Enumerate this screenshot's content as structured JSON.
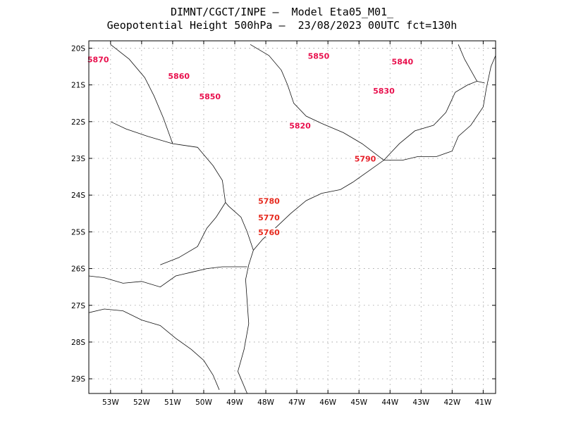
{
  "header": {
    "line1": "DIMNT/CGCT/INPE –  Model Eta05_M01_",
    "line2": "Geopotential Height 500hPa –  23/08/2023 00UTC fct=130h"
  },
  "map": {
    "lon_range": [
      -53.7,
      -40.6
    ],
    "lat_range": [
      -29.4,
      -19.8
    ],
    "lon_ticks": [
      {
        "value": -53,
        "label": "53W"
      },
      {
        "value": -52,
        "label": "52W"
      },
      {
        "value": -51,
        "label": "51W"
      },
      {
        "value": -50,
        "label": "50W"
      },
      {
        "value": -49,
        "label": "49W"
      },
      {
        "value": -48,
        "label": "48W"
      },
      {
        "value": -47,
        "label": "47W"
      },
      {
        "value": -46,
        "label": "46W"
      },
      {
        "value": -45,
        "label": "45W"
      },
      {
        "value": -44,
        "label": "44W"
      },
      {
        "value": -43,
        "label": "43W"
      },
      {
        "value": -42,
        "label": "42W"
      },
      {
        "value": -41,
        "label": "41W"
      }
    ],
    "lat_ticks": [
      {
        "value": -20,
        "label": "20S"
      },
      {
        "value": -21,
        "label": "21S"
      },
      {
        "value": -22,
        "label": "22S"
      },
      {
        "value": -23,
        "label": "23S"
      },
      {
        "value": -24,
        "label": "24S"
      },
      {
        "value": -25,
        "label": "25S"
      },
      {
        "value": -26,
        "label": "26S"
      },
      {
        "value": -27,
        "label": "27S"
      },
      {
        "value": -28,
        "label": "28S"
      },
      {
        "value": -29,
        "label": "29S"
      }
    ],
    "contour_labels": [
      {
        "text": "5870",
        "lon": -53.4,
        "lat": -20.35,
        "color": "#e8104d"
      },
      {
        "text": "5860",
        "lon": -50.8,
        "lat": -20.8,
        "color": "#e8104d"
      },
      {
        "text": "5850",
        "lon": -46.3,
        "lat": -20.25,
        "color": "#e8104d"
      },
      {
        "text": "5850",
        "lon": -49.8,
        "lat": -21.35,
        "color": "#e8104d"
      },
      {
        "text": "5840",
        "lon": -43.6,
        "lat": -20.4,
        "color": "#e8104d"
      },
      {
        "text": "5830",
        "lon": -44.2,
        "lat": -21.2,
        "color": "#e8104d"
      },
      {
        "text": "5820",
        "lon": -46.9,
        "lat": -22.15,
        "color": "#e8104d"
      },
      {
        "text": "5790",
        "lon": -44.8,
        "lat": -23.05,
        "color": "#e61e28"
      },
      {
        "text": "5780",
        "lon": -47.9,
        "lat": -24.2,
        "color": "#e62a1e"
      },
      {
        "text": "5770",
        "lon": -47.9,
        "lat": -24.65,
        "color": "#e62a1e"
      },
      {
        "text": "5760",
        "lon": -47.9,
        "lat": -25.05,
        "color": "#e62a1e"
      }
    ]
  },
  "chart_data": {
    "type": "contour",
    "title": "Geopotential Height 500hPa",
    "variable_units": "gpm",
    "contour_interval": 10,
    "labeled_levels": [
      5870,
      5860,
      5850,
      5840,
      5830,
      5820,
      5790,
      5780,
      5770,
      5760
    ],
    "xlabel": "",
    "ylabel": "",
    "xlim": [
      -53.7,
      -40.6
    ],
    "ylim": [
      -29.4,
      -19.8
    ]
  }
}
